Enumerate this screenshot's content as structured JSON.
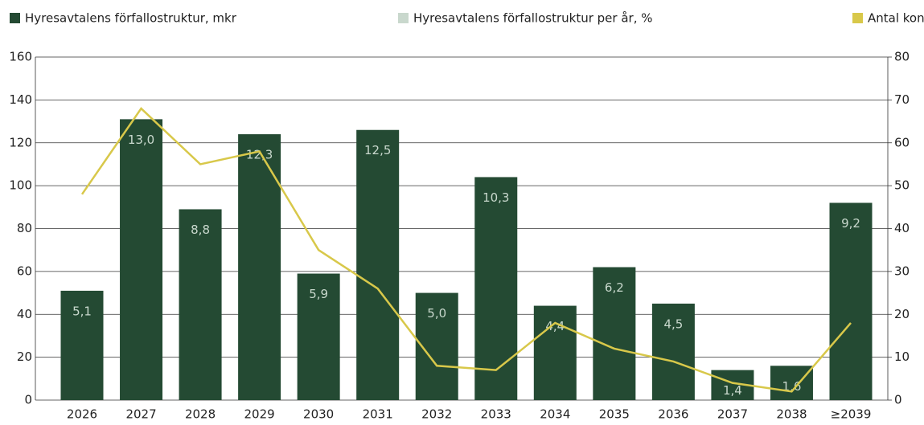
{
  "chart_data": {
    "type": "bar_line",
    "categories": [
      "2026",
      "2027",
      "2028",
      "2029",
      "2030",
      "2031",
      "2032",
      "2033",
      "2034",
      "2035",
      "2036",
      "2037",
      "2038",
      "≥2039"
    ],
    "series": [
      {
        "name": "Hyresavtalens förfallostruktur, mkr",
        "color": "#244a33",
        "type": "bar",
        "values": [
          51,
          131,
          89,
          124,
          59,
          126,
          50,
          104,
          44,
          62,
          45,
          14,
          16,
          92
        ]
      },
      {
        "name": "Hyresavtalens förfallostruktur per år, %",
        "color": "#c9d8cd",
        "type": "label",
        "values": [
          5.1,
          13.0,
          8.8,
          12.3,
          5.9,
          12.5,
          5.0,
          10.3,
          4.4,
          6.2,
          4.5,
          1.4,
          1.6,
          9.2
        ],
        "value_labels": [
          "5,1",
          "13,0",
          "8,8",
          "12,3",
          "5,9",
          "12,5",
          "5,0",
          "10,3",
          "4,4",
          "6,2",
          "4,5",
          "1,4",
          "1,6",
          "9,2"
        ]
      },
      {
        "name": "Antal kontrakt, st",
        "color": "#d8c84a",
        "type": "line",
        "axis": "y2",
        "values": [
          48,
          68,
          55,
          58,
          35,
          26,
          8,
          7,
          18,
          12,
          9,
          4,
          2,
          18
        ]
      }
    ],
    "ylim": [
      0,
      160
    ],
    "yticks": [
      0,
      20,
      40,
      60,
      80,
      100,
      120,
      140,
      160
    ],
    "y2lim": [
      0,
      80
    ],
    "y2ticks": [
      0,
      10,
      20,
      30,
      40,
      50,
      60,
      70,
      80
    ],
    "grid": true
  }
}
